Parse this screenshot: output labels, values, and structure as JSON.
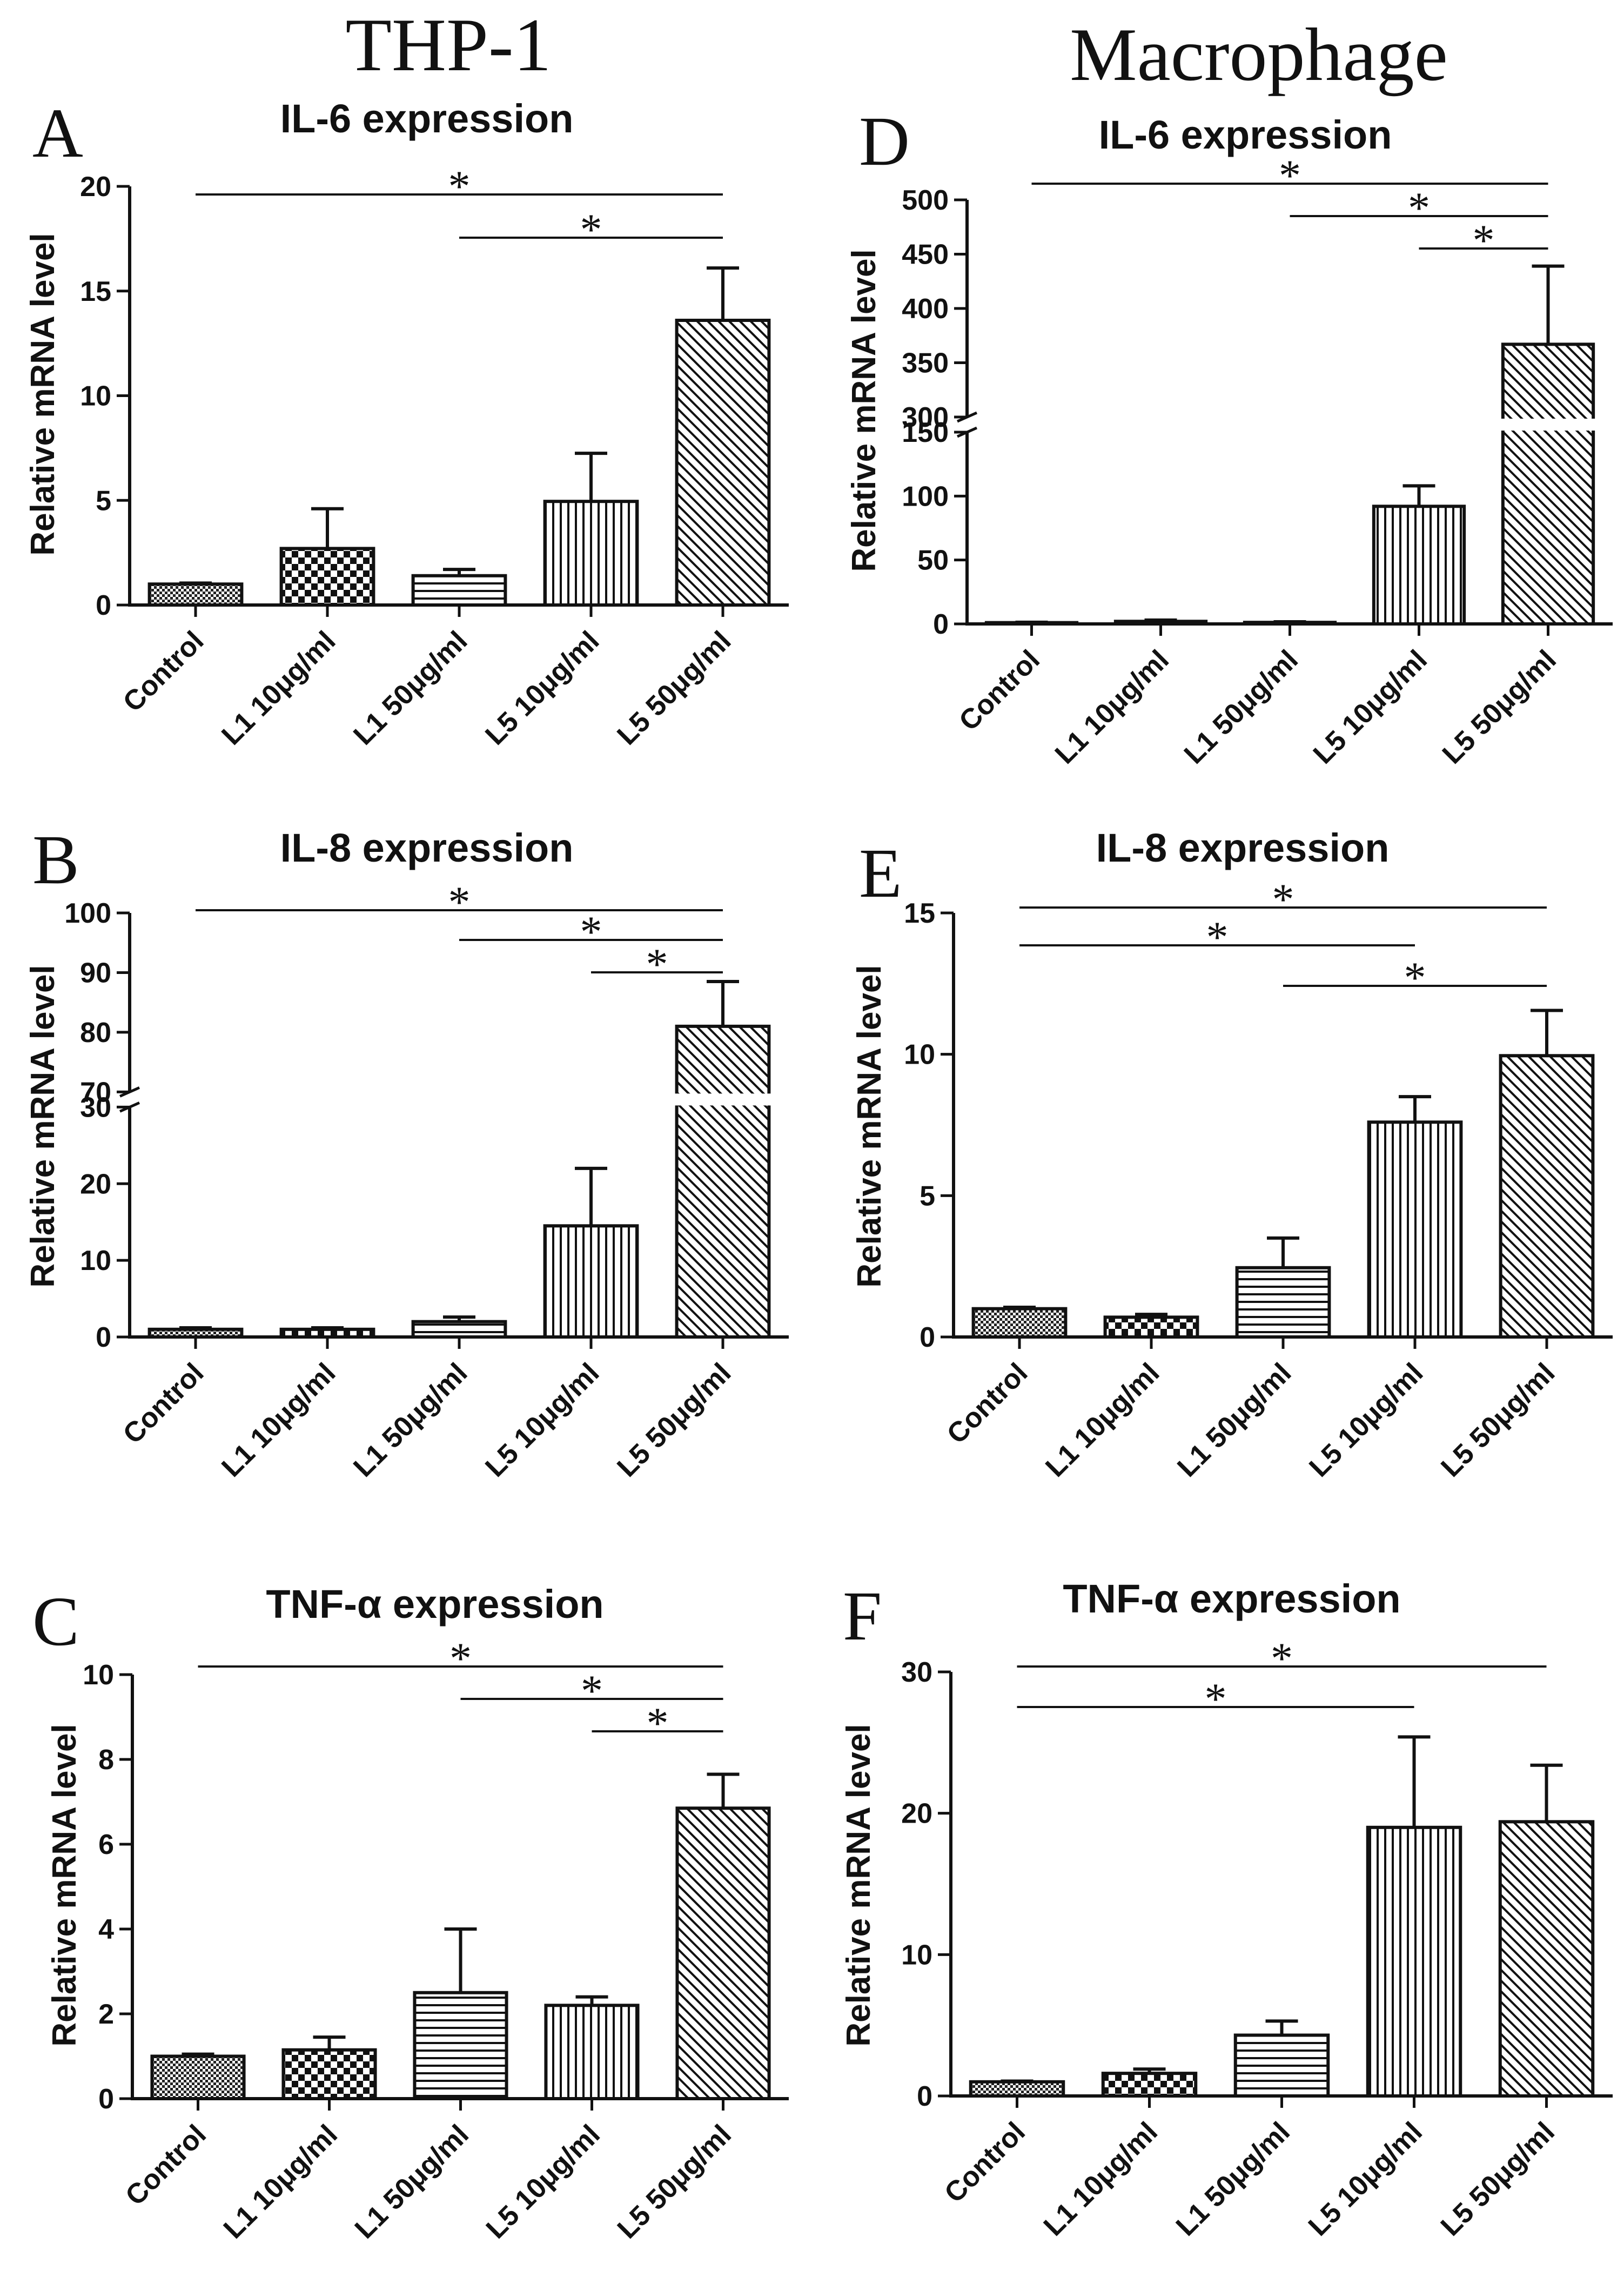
{
  "figure": {
    "column_headers": [
      "THP-1",
      "Macrophage"
    ]
  },
  "chart_data": [
    {
      "panel": "A",
      "type": "bar",
      "title": "IL-6 expression",
      "ylabel": "Relative mRNA level",
      "categories": [
        "Control",
        "L1 10μg/ml",
        "L1 50μg/ml",
        "L5 10μg/ml",
        "L5 50μg/ml"
      ],
      "values": [
        1.0,
        2.7,
        1.4,
        4.95,
        13.6
      ],
      "errors": [
        0.05,
        1.9,
        0.3,
        2.3,
        2.5
      ],
      "patterns": [
        "checker",
        "checker_large",
        "horizontal",
        "vertical",
        "diagonal"
      ],
      "ylim": [
        0,
        20
      ],
      "yticks": [
        0,
        5,
        10,
        15,
        20
      ],
      "significance": [
        {
          "from": 0,
          "to": 4,
          "label": "*"
        },
        {
          "from": 2,
          "to": 4,
          "label": "*"
        }
      ]
    },
    {
      "panel": "B",
      "type": "bar",
      "title": "IL-8 expression",
      "ylabel": "Relative mRNA level",
      "categories": [
        "Control",
        "L1 10μg/ml",
        "L1 50μg/ml",
        "L5 10μg/ml",
        "L5 50μg/ml"
      ],
      "values": [
        1.0,
        1.0,
        2.0,
        14.5,
        81
      ],
      "errors": [
        0.2,
        0.2,
        0.6,
        7.5,
        7.5
      ],
      "patterns": [
        "checker",
        "checker_large",
        "horizontal",
        "vertical",
        "diagonal"
      ],
      "axis_break": {
        "lower": [
          0,
          30
        ],
        "upper": [
          70,
          100
        ]
      },
      "yticks_lower": [
        0,
        10,
        20,
        30
      ],
      "yticks_upper": [
        70,
        80,
        90,
        100
      ],
      "significance": [
        {
          "from": 0,
          "to": 4,
          "label": "*"
        },
        {
          "from": 2,
          "to": 4,
          "label": "*"
        },
        {
          "from": 3,
          "to": 4,
          "label": "*"
        }
      ]
    },
    {
      "panel": "C",
      "type": "bar",
      "title": "TNF-α expression",
      "ylabel": "Relative mRNA level",
      "categories": [
        "Control",
        "L1 10μg/ml",
        "L1 50μg/ml",
        "L5 10μg/ml",
        "L5 50μg/ml"
      ],
      "values": [
        1.0,
        1.15,
        2.5,
        2.2,
        6.85
      ],
      "errors": [
        0.05,
        0.3,
        1.5,
        0.2,
        0.8
      ],
      "patterns": [
        "checker",
        "checker_large",
        "horizontal",
        "vertical",
        "diagonal"
      ],
      "ylim": [
        0,
        10
      ],
      "yticks": [
        0,
        2,
        4,
        6,
        8,
        10
      ],
      "significance": [
        {
          "from": 0,
          "to": 4,
          "label": "*"
        },
        {
          "from": 2,
          "to": 4,
          "label": "*"
        },
        {
          "from": 3,
          "to": 4,
          "label": "*"
        }
      ]
    },
    {
      "panel": "D",
      "type": "bar",
      "title": "IL-6 expression",
      "ylabel": "Relative mRNA level",
      "categories": [
        "Control",
        "L1 10μg/ml",
        "L1 50μg/ml",
        "L5 10μg/ml",
        "L5 50μg/ml"
      ],
      "values": [
        1.0,
        2.0,
        1.2,
        92,
        367
      ],
      "errors": [
        0.3,
        1.0,
        0.5,
        16,
        72
      ],
      "patterns": [
        "checker",
        "checker_large",
        "horizontal",
        "vertical",
        "diagonal"
      ],
      "axis_break": {
        "lower": [
          0,
          150
        ],
        "upper": [
          300,
          500
        ]
      },
      "yticks_lower": [
        0,
        50,
        100,
        150
      ],
      "yticks_upper": [
        300,
        350,
        400,
        450,
        500
      ],
      "significance": [
        {
          "from": 0,
          "to": 4,
          "label": "*"
        },
        {
          "from": 2,
          "to": 4,
          "label": "*"
        },
        {
          "from": 3,
          "to": 4,
          "label": "*"
        }
      ]
    },
    {
      "panel": "E",
      "type": "bar",
      "title": "IL-8 expression",
      "ylabel": "Relative mRNA level",
      "categories": [
        "Control",
        "L1 10μg/ml",
        "L1 50μg/ml",
        "L5 10μg/ml",
        "L5 50μg/ml"
      ],
      "values": [
        1.0,
        0.7,
        2.45,
        7.6,
        9.95
      ],
      "errors": [
        0.05,
        0.1,
        1.05,
        0.9,
        1.6
      ],
      "patterns": [
        "checker",
        "checker_large",
        "horizontal",
        "vertical",
        "diagonal"
      ],
      "ylim": [
        0,
        15
      ],
      "yticks": [
        0,
        5,
        10,
        15
      ],
      "significance": [
        {
          "from": 0,
          "to": 4,
          "label": "*"
        },
        {
          "from": 0,
          "to": 3,
          "label": "*"
        },
        {
          "from": 2,
          "to": 4,
          "label": "*"
        }
      ]
    },
    {
      "panel": "F",
      "type": "bar",
      "title": "TNF-α expression",
      "ylabel": "Relative mRNA level",
      "categories": [
        "Control",
        "L1 10μg/ml",
        "L1 50μg/ml",
        "L5 10μg/ml",
        "L5 50μg/ml"
      ],
      "values": [
        1.0,
        1.6,
        4.3,
        19,
        19.4
      ],
      "errors": [
        0.05,
        0.3,
        1.0,
        6.4,
        4.0
      ],
      "patterns": [
        "checker",
        "checker_large",
        "horizontal",
        "vertical",
        "diagonal"
      ],
      "ylim": [
        0,
        30
      ],
      "yticks": [
        0,
        10,
        20,
        30
      ],
      "significance": [
        {
          "from": 0,
          "to": 4,
          "label": "*"
        },
        {
          "from": 0,
          "to": 3,
          "label": "*"
        }
      ]
    }
  ]
}
